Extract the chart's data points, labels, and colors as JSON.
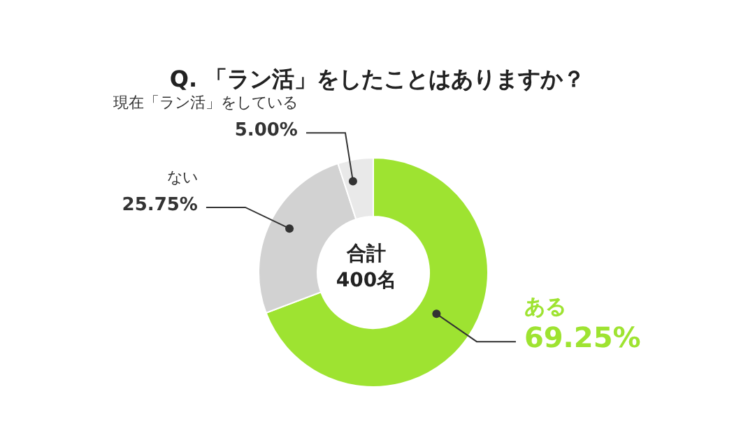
{
  "chart_data": {
    "type": "donut",
    "title": "Q. 「ラン活」をしたことはありますか？",
    "categories": [
      "ある",
      "ない",
      "現在「ラン活」をしている"
    ],
    "values": [
      69.25,
      25.75,
      5.0
    ],
    "value_labels": [
      "69.25%",
      "25.75%",
      "5.00%"
    ],
    "colors": [
      "#9ee331",
      "#d2d2d2",
      "#e9e9e9"
    ],
    "annotations": [
      "合計\n400名"
    ],
    "legend": false
  }
}
